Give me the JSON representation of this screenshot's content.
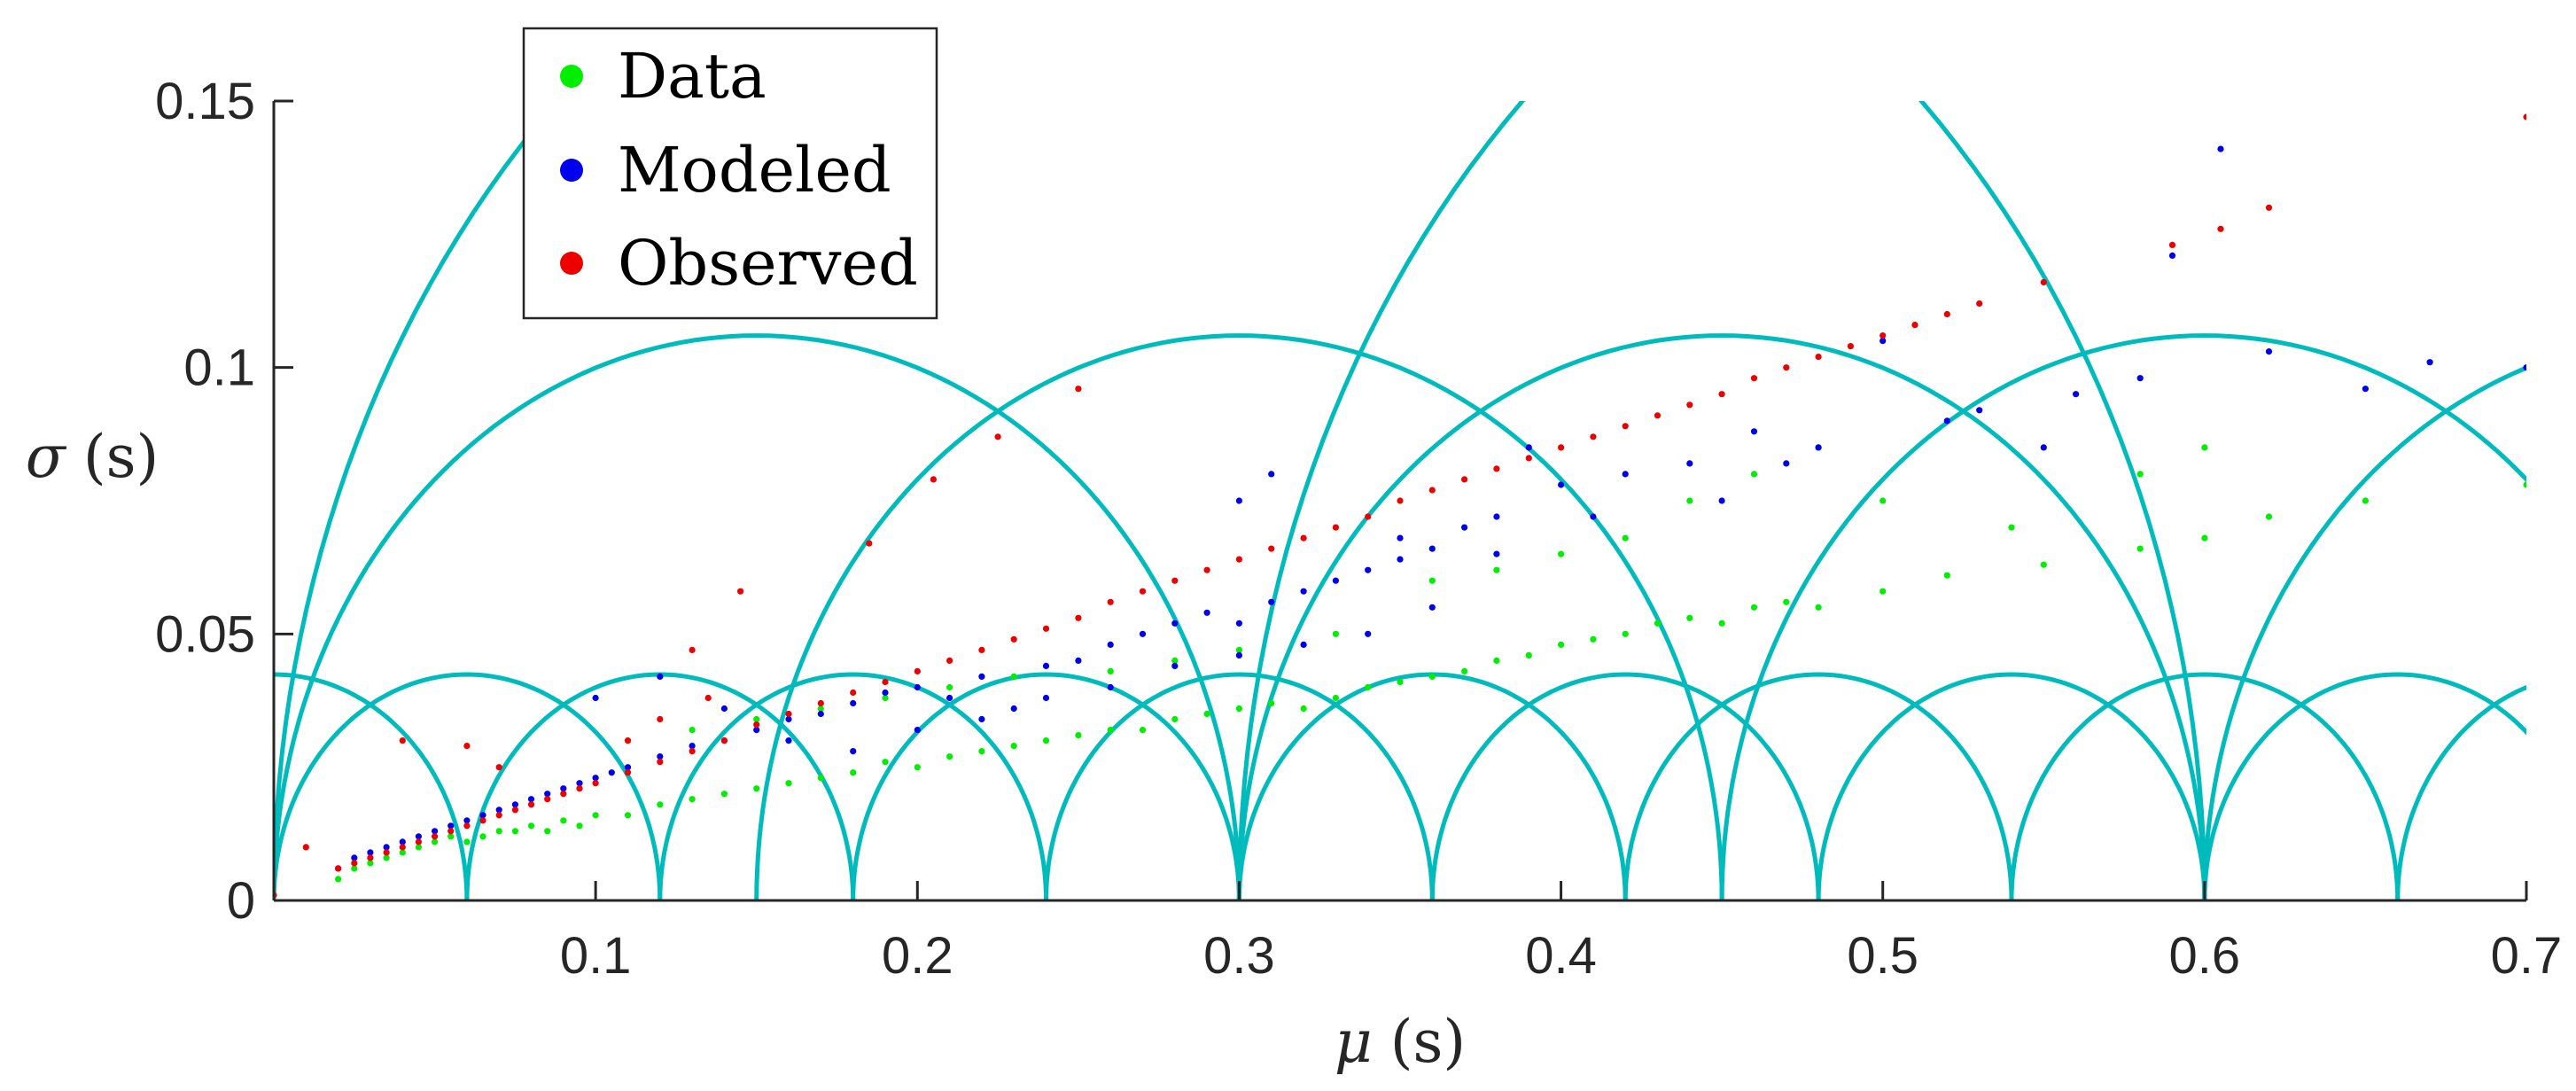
{
  "chart_data": {
    "type": "scatter",
    "title": "",
    "xlabel": "μ (s)",
    "ylabel": "σ (s)",
    "xlabel_symbol": "μ",
    "ylabel_symbol": "σ",
    "unit_label": "(s)",
    "xlim": [
      0,
      0.7
    ],
    "ylim": [
      0,
      0.15
    ],
    "xticks": [
      0.1,
      0.2,
      0.3,
      0.4,
      0.5,
      0.6,
      0.7
    ],
    "xtick_labels": [
      "0.1",
      "0.2",
      "0.3",
      "0.4",
      "0.5",
      "0.6",
      "0.7"
    ],
    "yticks": [
      0,
      0.05,
      0.1,
      0.15
    ],
    "ytick_labels": [
      "0",
      "0.05",
      "0.1",
      "0.15"
    ],
    "grid": false,
    "legend_position": "top-left",
    "series": [
      {
        "name": "Data",
        "color": "#00ee00",
        "marker": "dot",
        "trend": "y ≈ 0.115·x + 0.002 (wide scatter)",
        "points": [
          [
            0.02,
            0.004
          ],
          [
            0.025,
            0.006
          ],
          [
            0.03,
            0.007
          ],
          [
            0.035,
            0.008
          ],
          [
            0.04,
            0.009
          ],
          [
            0.045,
            0.01
          ],
          [
            0.05,
            0.011
          ],
          [
            0.055,
            0.012
          ],
          [
            0.06,
            0.011
          ],
          [
            0.065,
            0.012
          ],
          [
            0.07,
            0.013
          ],
          [
            0.075,
            0.013
          ],
          [
            0.08,
            0.014
          ],
          [
            0.085,
            0.013
          ],
          [
            0.09,
            0.015
          ],
          [
            0.095,
            0.014
          ],
          [
            0.1,
            0.016
          ],
          [
            0.11,
            0.016
          ],
          [
            0.12,
            0.018
          ],
          [
            0.13,
            0.019
          ],
          [
            0.14,
            0.02
          ],
          [
            0.15,
            0.021
          ],
          [
            0.16,
            0.022
          ],
          [
            0.17,
            0.023
          ],
          [
            0.18,
            0.024
          ],
          [
            0.19,
            0.026
          ],
          [
            0.2,
            0.025
          ],
          [
            0.21,
            0.027
          ],
          [
            0.22,
            0.028
          ],
          [
            0.23,
            0.029
          ],
          [
            0.24,
            0.03
          ],
          [
            0.25,
            0.031
          ],
          [
            0.26,
            0.032
          ],
          [
            0.27,
            0.032
          ],
          [
            0.28,
            0.034
          ],
          [
            0.29,
            0.035
          ],
          [
            0.3,
            0.036
          ],
          [
            0.31,
            0.037
          ],
          [
            0.32,
            0.036
          ],
          [
            0.33,
            0.038
          ],
          [
            0.34,
            0.04
          ],
          [
            0.35,
            0.041
          ],
          [
            0.36,
            0.042
          ],
          [
            0.37,
            0.043
          ],
          [
            0.38,
            0.045
          ],
          [
            0.39,
            0.046
          ],
          [
            0.4,
            0.048
          ],
          [
            0.41,
            0.049
          ],
          [
            0.42,
            0.05
          ],
          [
            0.43,
            0.052
          ],
          [
            0.44,
            0.053
          ],
          [
            0.45,
            0.052
          ],
          [
            0.46,
            0.055
          ],
          [
            0.47,
            0.056
          ],
          [
            0.48,
            0.055
          ],
          [
            0.5,
            0.058
          ],
          [
            0.52,
            0.061
          ],
          [
            0.55,
            0.063
          ],
          [
            0.58,
            0.066
          ],
          [
            0.6,
            0.068
          ],
          [
            0.62,
            0.072
          ],
          [
            0.11,
            0.03
          ],
          [
            0.13,
            0.032
          ],
          [
            0.15,
            0.034
          ],
          [
            0.17,
            0.036
          ],
          [
            0.19,
            0.038
          ],
          [
            0.21,
            0.04
          ],
          [
            0.23,
            0.042
          ],
          [
            0.26,
            0.043
          ],
          [
            0.28,
            0.045
          ],
          [
            0.3,
            0.047
          ],
          [
            0.33,
            0.05
          ],
          [
            0.36,
            0.06
          ],
          [
            0.38,
            0.062
          ],
          [
            0.4,
            0.065
          ],
          [
            0.42,
            0.068
          ],
          [
            0.44,
            0.075
          ],
          [
            0.46,
            0.08
          ],
          [
            0.48,
            0.085
          ],
          [
            0.5,
            0.075
          ],
          [
            0.54,
            0.07
          ],
          [
            0.58,
            0.08
          ],
          [
            0.6,
            0.085
          ],
          [
            0.65,
            0.075
          ],
          [
            0.7,
            0.078
          ]
        ]
      },
      {
        "name": "Modeled",
        "color": "#0000ee",
        "marker": "dot",
        "trend": "y ≈ 0.16·x + 0.004 (moderate scatter)",
        "points": [
          [
            0.02,
            0.006
          ],
          [
            0.025,
            0.008
          ],
          [
            0.03,
            0.009
          ],
          [
            0.035,
            0.01
          ],
          [
            0.04,
            0.011
          ],
          [
            0.045,
            0.012
          ],
          [
            0.05,
            0.013
          ],
          [
            0.055,
            0.014
          ],
          [
            0.06,
            0.015
          ],
          [
            0.065,
            0.016
          ],
          [
            0.07,
            0.017
          ],
          [
            0.075,
            0.018
          ],
          [
            0.08,
            0.019
          ],
          [
            0.085,
            0.02
          ],
          [
            0.09,
            0.021
          ],
          [
            0.095,
            0.022
          ],
          [
            0.1,
            0.023
          ],
          [
            0.105,
            0.024
          ],
          [
            0.11,
            0.025
          ],
          [
            0.12,
            0.027
          ],
          [
            0.13,
            0.029
          ],
          [
            0.14,
            0.03
          ],
          [
            0.15,
            0.032
          ],
          [
            0.16,
            0.034
          ],
          [
            0.17,
            0.035
          ],
          [
            0.18,
            0.037
          ],
          [
            0.19,
            0.039
          ],
          [
            0.2,
            0.04
          ],
          [
            0.21,
            0.038
          ],
          [
            0.22,
            0.042
          ],
          [
            0.23,
            0.036
          ],
          [
            0.24,
            0.044
          ],
          [
            0.25,
            0.045
          ],
          [
            0.26,
            0.048
          ],
          [
            0.27,
            0.05
          ],
          [
            0.28,
            0.052
          ],
          [
            0.29,
            0.054
          ],
          [
            0.3,
            0.052
          ],
          [
            0.31,
            0.056
          ],
          [
            0.32,
            0.058
          ],
          [
            0.33,
            0.06
          ],
          [
            0.34,
            0.062
          ],
          [
            0.35,
            0.064
          ],
          [
            0.36,
            0.066
          ],
          [
            0.37,
            0.07
          ],
          [
            0.38,
            0.072
          ],
          [
            0.39,
            0.085
          ],
          [
            0.4,
            0.078
          ],
          [
            0.41,
            0.072
          ],
          [
            0.42,
            0.08
          ],
          [
            0.44,
            0.082
          ],
          [
            0.46,
            0.088
          ],
          [
            0.48,
            0.085
          ],
          [
            0.5,
            0.105
          ],
          [
            0.53,
            0.092
          ],
          [
            0.56,
            0.095
          ],
          [
            0.58,
            0.098
          ],
          [
            0.59,
            0.121
          ],
          [
            0.605,
            0.141
          ],
          [
            0.62,
            0.103
          ],
          [
            0.65,
            0.096
          ],
          [
            0.67,
            0.101
          ],
          [
            0.7,
            0.1
          ],
          [
            0.1,
            0.038
          ],
          [
            0.12,
            0.042
          ],
          [
            0.14,
            0.036
          ],
          [
            0.16,
            0.03
          ],
          [
            0.18,
            0.028
          ],
          [
            0.2,
            0.032
          ],
          [
            0.22,
            0.034
          ],
          [
            0.24,
            0.038
          ],
          [
            0.26,
            0.04
          ],
          [
            0.28,
            0.044
          ],
          [
            0.3,
            0.046
          ],
          [
            0.32,
            0.048
          ],
          [
            0.34,
            0.05
          ],
          [
            0.36,
            0.055
          ],
          [
            0.38,
            0.065
          ],
          [
            0.3,
            0.075
          ],
          [
            0.31,
            0.08
          ],
          [
            0.35,
            0.068
          ],
          [
            0.45,
            0.075
          ],
          [
            0.47,
            0.082
          ],
          [
            0.52,
            0.09
          ],
          [
            0.55,
            0.085
          ]
        ]
      },
      {
        "name": "Observed",
        "color": "#ee0000",
        "marker": "dot",
        "trend": "y ≈ 0.21·x + 0.002 (tight line)",
        "points": [
          [
            0.0,
            0.001
          ],
          [
            0.02,
            0.006
          ],
          [
            0.025,
            0.007
          ],
          [
            0.03,
            0.008
          ],
          [
            0.035,
            0.009
          ],
          [
            0.04,
            0.01
          ],
          [
            0.045,
            0.011
          ],
          [
            0.05,
            0.012
          ],
          [
            0.055,
            0.013
          ],
          [
            0.06,
            0.014
          ],
          [
            0.065,
            0.015
          ],
          [
            0.07,
            0.016
          ],
          [
            0.075,
            0.017
          ],
          [
            0.08,
            0.018
          ],
          [
            0.085,
            0.019
          ],
          [
            0.09,
            0.02
          ],
          [
            0.095,
            0.021
          ],
          [
            0.1,
            0.022
          ],
          [
            0.11,
            0.024
          ],
          [
            0.12,
            0.026
          ],
          [
            0.13,
            0.028
          ],
          [
            0.14,
            0.03
          ],
          [
            0.15,
            0.033
          ],
          [
            0.16,
            0.035
          ],
          [
            0.17,
            0.037
          ],
          [
            0.18,
            0.039
          ],
          [
            0.19,
            0.041
          ],
          [
            0.2,
            0.043
          ],
          [
            0.21,
            0.045
          ],
          [
            0.22,
            0.047
          ],
          [
            0.23,
            0.049
          ],
          [
            0.24,
            0.051
          ],
          [
            0.25,
            0.053
          ],
          [
            0.26,
            0.056
          ],
          [
            0.27,
            0.058
          ],
          [
            0.28,
            0.06
          ],
          [
            0.29,
            0.062
          ],
          [
            0.3,
            0.064
          ],
          [
            0.31,
            0.066
          ],
          [
            0.32,
            0.068
          ],
          [
            0.33,
            0.07
          ],
          [
            0.34,
            0.072
          ],
          [
            0.35,
            0.075
          ],
          [
            0.36,
            0.077
          ],
          [
            0.37,
            0.079
          ],
          [
            0.38,
            0.081
          ],
          [
            0.39,
            0.083
          ],
          [
            0.4,
            0.085
          ],
          [
            0.41,
            0.087
          ],
          [
            0.42,
            0.089
          ],
          [
            0.43,
            0.091
          ],
          [
            0.44,
            0.093
          ],
          [
            0.45,
            0.095
          ],
          [
            0.46,
            0.098
          ],
          [
            0.47,
            0.1
          ],
          [
            0.48,
            0.102
          ],
          [
            0.49,
            0.104
          ],
          [
            0.5,
            0.106
          ],
          [
            0.51,
            0.108
          ],
          [
            0.52,
            0.11
          ],
          [
            0.53,
            0.112
          ],
          [
            0.55,
            0.116
          ],
          [
            0.59,
            0.123
          ],
          [
            0.605,
            0.126
          ],
          [
            0.62,
            0.13
          ],
          [
            0.7,
            0.147
          ],
          [
            0.04,
            0.03
          ],
          [
            0.06,
            0.029
          ],
          [
            0.07,
            0.025
          ],
          [
            0.11,
            0.03
          ],
          [
            0.13,
            0.047
          ],
          [
            0.145,
            0.058
          ],
          [
            0.185,
            0.067
          ],
          [
            0.205,
            0.079
          ],
          [
            0.225,
            0.087
          ],
          [
            0.25,
            0.096
          ],
          [
            0.12,
            0.034
          ],
          [
            0.135,
            0.038
          ],
          [
            0.01,
            0.01
          ]
        ]
      }
    ],
    "overlay_curves": {
      "color": "#00bbbb",
      "description": "semicircular arcs (two families) plus two larger arcs",
      "small_arcs": {
        "radius": 0.06,
        "height": 0.0424,
        "centers": [
          0.06,
          0.18,
          0.3,
          0.42,
          0.54,
          0.66
        ]
      },
      "small_arcs_b": {
        "radius": 0.06,
        "height": 0.0424,
        "centers": [
          0.0,
          0.12,
          0.24,
          0.36,
          0.48,
          0.6,
          0.72
        ]
      },
      "large_arcs": {
        "radius": 0.15,
        "height": 0.106,
        "centers": [
          0.15,
          0.3,
          0.45,
          0.6,
          0.75
        ]
      },
      "edge_arcs": {
        "radius": 0.3,
        "height": 0.212,
        "centers": [
          0.3,
          0.6
        ]
      }
    }
  }
}
